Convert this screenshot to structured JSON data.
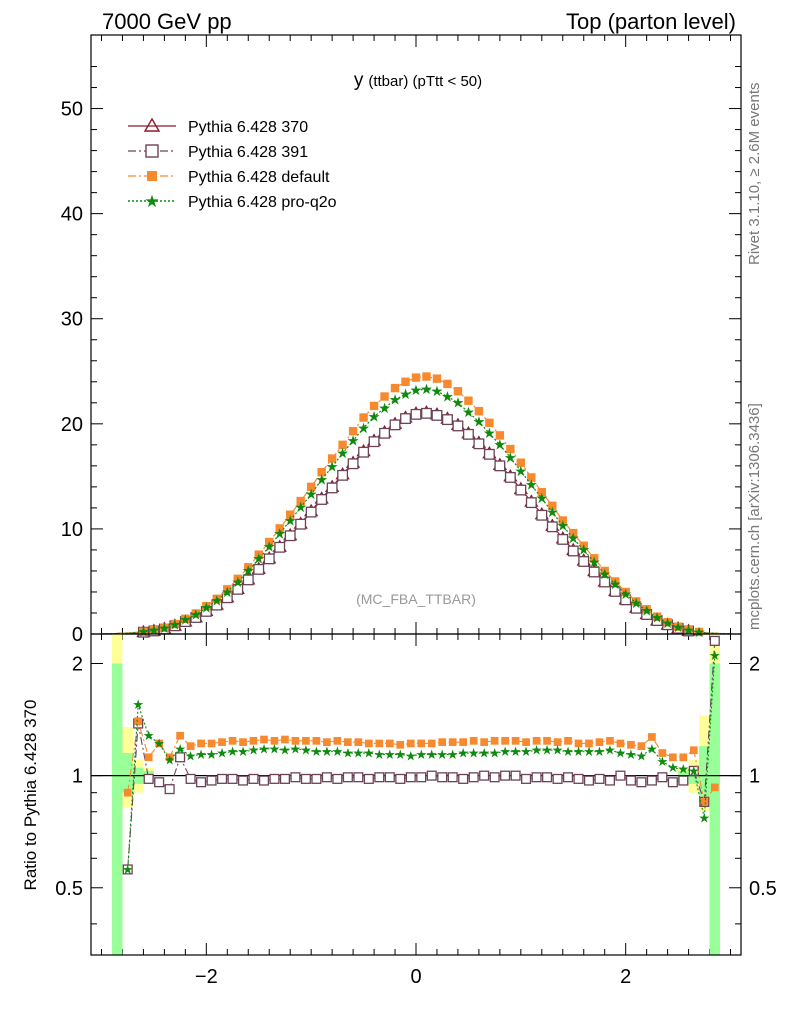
{
  "header": {
    "left": "7000 GeV pp",
    "right": "Top (parton level)"
  },
  "side_labels": {
    "rivet": "Rivet 3.1.10, ≥ 2.6M events",
    "mcplots": "mcplots.cern.ch [arXiv:1306.3436]"
  },
  "plot_title_main": "y",
  "plot_title_sub": "(ttbar)  (pTtt < 50)",
  "watermark": "(MC_FBA_TTBAR)",
  "ratio_ylabel": "Ratio to Pythia 6.428 370",
  "colors": {
    "p370": "#8b1a2b",
    "p391": "#6b4358",
    "default": "#f78a2e",
    "proq2o": "#0f8a0f",
    "band_yellow": "#ffff99",
    "band_green": "#99ff99"
  },
  "chart_data": [
    {
      "type": "line",
      "panel": "main",
      "xlim": [
        -3.1,
        3.1
      ],
      "ylim": [
        0,
        57
      ],
      "yticks": [
        "0",
        "10",
        "20",
        "30",
        "40",
        "50"
      ],
      "xticks": [
        "−2",
        "0",
        "2"
      ],
      "legend_position": "top-left",
      "series": [
        {
          "name": "Pythia 6.428 370",
          "key": "p370",
          "marker": "open-triangle",
          "style": "solid",
          "x": [
            -3.0,
            -2.9,
            -2.8,
            -2.7,
            -2.6,
            -2.5,
            -2.4,
            -2.3,
            -2.2,
            -2.1,
            -2.0,
            -1.9,
            -1.8,
            -1.7,
            -1.6,
            -1.5,
            -1.4,
            -1.3,
            -1.2,
            -1.1,
            -1.0,
            -0.9,
            -0.8,
            -0.7,
            -0.6,
            -0.5,
            -0.4,
            -0.3,
            -0.2,
            -0.1,
            0.0,
            0.1,
            0.2,
            0.3,
            0.4,
            0.5,
            0.6,
            0.7,
            0.8,
            0.9,
            1.0,
            1.1,
            1.2,
            1.3,
            1.4,
            1.5,
            1.6,
            1.7,
            1.8,
            1.9,
            2.0,
            2.1,
            2.2,
            2.3,
            2.4,
            2.5,
            2.6,
            2.7,
            2.8,
            2.9,
            3.0
          ],
          "y": [
            0.02,
            0.03,
            0.06,
            0.1,
            0.18,
            0.3,
            0.5,
            0.8,
            1.2,
            1.6,
            2.2,
            2.8,
            3.5,
            4.3,
            5.2,
            6.2,
            7.2,
            8.3,
            9.4,
            10.5,
            11.7,
            12.9,
            14.0,
            15.2,
            16.3,
            17.4,
            18.4,
            19.2,
            20.0,
            20.6,
            21.0,
            21.1,
            20.9,
            20.5,
            19.9,
            19.1,
            18.2,
            17.2,
            16.1,
            15.0,
            13.8,
            12.6,
            11.4,
            10.3,
            9.1,
            8.0,
            7.0,
            6.0,
            5.0,
            4.1,
            3.3,
            2.5,
            1.9,
            1.3,
            0.9,
            0.55,
            0.3,
            0.15,
            0.07,
            0.04,
            0.02
          ]
        },
        {
          "name": "Pythia 6.428 391",
          "key": "p391",
          "marker": "open-square",
          "style": "dashdot",
          "x": [
            -3.0,
            -2.9,
            -2.8,
            -2.7,
            -2.6,
            -2.5,
            -2.4,
            -2.3,
            -2.2,
            -2.1,
            -2.0,
            -1.9,
            -1.8,
            -1.7,
            -1.6,
            -1.5,
            -1.4,
            -1.3,
            -1.2,
            -1.1,
            -1.0,
            -0.9,
            -0.8,
            -0.7,
            -0.6,
            -0.5,
            -0.4,
            -0.3,
            -0.2,
            -0.1,
            0.0,
            0.1,
            0.2,
            0.3,
            0.4,
            0.5,
            0.6,
            0.7,
            0.8,
            0.9,
            1.0,
            1.1,
            1.2,
            1.3,
            1.4,
            1.5,
            1.6,
            1.7,
            1.8,
            1.9,
            2.0,
            2.1,
            2.2,
            2.3,
            2.4,
            2.5,
            2.6,
            2.7,
            2.8,
            2.9,
            3.0
          ],
          "y": [
            0.02,
            0.03,
            0.06,
            0.1,
            0.17,
            0.29,
            0.48,
            0.78,
            1.18,
            1.57,
            2.15,
            2.75,
            3.45,
            4.25,
            5.15,
            6.15,
            7.15,
            8.25,
            9.35,
            10.45,
            11.6,
            12.8,
            13.9,
            15.1,
            16.2,
            17.3,
            18.3,
            19.1,
            19.9,
            20.5,
            20.9,
            21.0,
            20.8,
            20.4,
            19.8,
            19.0,
            18.1,
            17.1,
            16.0,
            14.9,
            13.7,
            12.5,
            11.3,
            10.2,
            9.0,
            7.9,
            6.9,
            5.9,
            4.95,
            4.05,
            3.25,
            2.45,
            1.85,
            1.28,
            0.88,
            0.54,
            0.29,
            0.14,
            0.07,
            0.04,
            0.02
          ]
        },
        {
          "name": "Pythia 6.428 default",
          "key": "default",
          "marker": "filled-square",
          "style": "dashdot",
          "x": [
            -3.0,
            -2.9,
            -2.8,
            -2.7,
            -2.6,
            -2.5,
            -2.4,
            -2.3,
            -2.2,
            -2.1,
            -2.0,
            -1.9,
            -1.8,
            -1.7,
            -1.6,
            -1.5,
            -1.4,
            -1.3,
            -1.2,
            -1.1,
            -1.0,
            -0.9,
            -0.8,
            -0.7,
            -0.6,
            -0.5,
            -0.4,
            -0.3,
            -0.2,
            -0.1,
            0.0,
            0.1,
            0.2,
            0.3,
            0.4,
            0.5,
            0.6,
            0.7,
            0.8,
            0.9,
            1.0,
            1.1,
            1.2,
            1.3,
            1.4,
            1.5,
            1.6,
            1.7,
            1.8,
            1.9,
            2.0,
            2.1,
            2.2,
            2.3,
            2.4,
            2.5,
            2.6,
            2.7,
            2.8,
            2.9,
            3.0
          ],
          "y": [
            0.02,
            0.03,
            0.07,
            0.13,
            0.22,
            0.37,
            0.6,
            0.95,
            1.45,
            1.95,
            2.65,
            3.35,
            4.25,
            5.25,
            6.35,
            7.55,
            8.75,
            10.05,
            11.35,
            12.65,
            14.0,
            15.4,
            16.7,
            18.0,
            19.3,
            20.6,
            21.7,
            22.6,
            23.4,
            24.0,
            24.4,
            24.5,
            24.3,
            23.8,
            23.1,
            22.2,
            21.2,
            20.1,
            18.9,
            17.6,
            16.3,
            14.9,
            13.5,
            12.2,
            10.8,
            9.6,
            8.4,
            7.2,
            6.0,
            5.0,
            4.0,
            3.1,
            2.35,
            1.65,
            1.12,
            0.7,
            0.38,
            0.19,
            0.09,
            0.05,
            0.02
          ]
        },
        {
          "name": "Pythia 6.428 pro-q2o",
          "key": "proq2o",
          "marker": "open-star",
          "style": "dotted",
          "x": [
            -3.0,
            -2.9,
            -2.8,
            -2.7,
            -2.6,
            -2.5,
            -2.4,
            -2.3,
            -2.2,
            -2.1,
            -2.0,
            -1.9,
            -1.8,
            -1.7,
            -1.6,
            -1.5,
            -1.4,
            -1.3,
            -1.2,
            -1.1,
            -1.0,
            -0.9,
            -0.8,
            -0.7,
            -0.6,
            -0.5,
            -0.4,
            -0.3,
            -0.2,
            -0.1,
            0.0,
            0.1,
            0.2,
            0.3,
            0.4,
            0.5,
            0.6,
            0.7,
            0.8,
            0.9,
            1.0,
            1.1,
            1.2,
            1.3,
            1.4,
            1.5,
            1.6,
            1.7,
            1.8,
            1.9,
            2.0,
            2.1,
            2.2,
            2.3,
            2.4,
            2.5,
            2.6,
            2.7,
            2.8,
            2.9,
            3.0
          ],
          "y": [
            0.02,
            0.03,
            0.06,
            0.12,
            0.21,
            0.35,
            0.57,
            0.9,
            1.37,
            1.84,
            2.5,
            3.18,
            4.0,
            4.95,
            6.0,
            7.15,
            8.3,
            9.55,
            10.8,
            12.05,
            13.3,
            14.7,
            15.9,
            17.2,
            18.4,
            19.6,
            20.7,
            21.5,
            22.3,
            22.8,
            23.2,
            23.3,
            23.1,
            22.6,
            22.0,
            21.1,
            20.2,
            19.1,
            18.0,
            16.8,
            15.5,
            14.2,
            12.9,
            11.6,
            10.3,
            9.1,
            8.0,
            6.85,
            5.7,
            4.75,
            3.8,
            2.95,
            2.2,
            1.55,
            1.05,
            0.65,
            0.35,
            0.17,
            0.08,
            0.04,
            0.02
          ]
        }
      ]
    },
    {
      "type": "line",
      "panel": "ratio",
      "ylabel": "Ratio to Pythia 6.428 370",
      "xlim": [
        -3.1,
        3.1
      ],
      "ylim": [
        0.33,
        2.4
      ],
      "yscale": "log",
      "yticks": [
        "0.5",
        "1",
        "2"
      ],
      "xticks": [
        "−2",
        "0",
        "2"
      ],
      "reference_line": 1,
      "bands": [
        {
          "color": "band_yellow",
          "x": [
            -2.85,
            -2.75,
            -2.65,
            -2.55,
            2.55,
            2.65,
            2.75,
            2.85
          ],
          "lo": [
            0.35,
            0.82,
            0.9,
            0.95,
            0.95,
            0.9,
            0.8,
            0.33
          ],
          "hi": [
            2.5,
            1.35,
            1.1,
            1.05,
            1.05,
            1.1,
            1.45,
            2.5
          ]
        },
        {
          "color": "band_green",
          "x": [
            -2.85,
            -2.75,
            -2.65,
            -2.55,
            2.55,
            2.65,
            2.75,
            2.85
          ],
          "lo": [
            0.33,
            0.9,
            0.95,
            0.97,
            0.97,
            0.95,
            0.85,
            0.33
          ],
          "hi": [
            2.0,
            1.15,
            1.05,
            1.03,
            1.03,
            1.05,
            1.2,
            2.0
          ]
        }
      ],
      "series": [
        {
          "name": "Pythia 6.428 391",
          "key": "p391",
          "x": [
            -2.75,
            -2.65,
            -2.55,
            -2.45,
            -2.35,
            -2.25,
            -2.15,
            -2.05,
            -1.95,
            -1.85,
            -1.75,
            -1.65,
            -1.55,
            -1.45,
            -1.35,
            -1.25,
            -1.15,
            -1.05,
            -0.95,
            -0.85,
            -0.75,
            -0.65,
            -0.55,
            -0.45,
            -0.35,
            -0.25,
            -0.15,
            -0.05,
            0.05,
            0.15,
            0.25,
            0.35,
            0.45,
            0.55,
            0.65,
            0.75,
            0.85,
            0.95,
            1.05,
            1.15,
            1.25,
            1.35,
            1.45,
            1.55,
            1.65,
            1.75,
            1.85,
            1.95,
            2.05,
            2.15,
            2.25,
            2.35,
            2.45,
            2.55,
            2.65,
            2.75,
            2.85
          ],
          "y": [
            0.56,
            1.38,
            0.98,
            0.96,
            0.92,
            1.12,
            0.98,
            0.96,
            0.97,
            0.98,
            0.98,
            0.97,
            0.98,
            0.97,
            0.98,
            0.98,
            0.99,
            0.98,
            0.98,
            0.99,
            0.98,
            0.99,
            0.99,
            0.98,
            0.99,
            0.99,
            0.98,
            0.99,
            0.99,
            1.0,
            0.99,
            0.99,
            0.98,
            0.99,
            1.0,
            0.99,
            1.0,
            1.0,
            0.98,
            0.99,
            0.99,
            0.98,
            0.99,
            0.98,
            0.97,
            0.98,
            0.97,
            1.0,
            0.97,
            0.96,
            0.97,
            0.99,
            0.96,
            0.97,
            1.03,
            0.85,
            2.3
          ]
        },
        {
          "name": "Pythia 6.428 default",
          "key": "default",
          "x": [
            -2.75,
            -2.65,
            -2.55,
            -2.45,
            -2.35,
            -2.25,
            -2.15,
            -2.05,
            -1.95,
            -1.85,
            -1.75,
            -1.65,
            -1.55,
            -1.45,
            -1.35,
            -1.25,
            -1.15,
            -1.05,
            -0.95,
            -0.85,
            -0.75,
            -0.65,
            -0.55,
            -0.45,
            -0.35,
            -0.25,
            -0.15,
            -0.05,
            0.05,
            0.15,
            0.25,
            0.35,
            0.45,
            0.55,
            0.65,
            0.75,
            0.85,
            0.95,
            1.05,
            1.15,
            1.25,
            1.35,
            1.45,
            1.55,
            1.65,
            1.75,
            1.85,
            1.95,
            2.05,
            2.15,
            2.25,
            2.35,
            2.45,
            2.55,
            2.65,
            2.75,
            2.85
          ],
          "y": [
            0.9,
            1.4,
            1.12,
            1.22,
            1.12,
            1.28,
            1.2,
            1.22,
            1.22,
            1.23,
            1.24,
            1.23,
            1.24,
            1.25,
            1.24,
            1.25,
            1.24,
            1.24,
            1.24,
            1.23,
            1.24,
            1.23,
            1.23,
            1.22,
            1.22,
            1.22,
            1.21,
            1.22,
            1.22,
            1.22,
            1.23,
            1.23,
            1.23,
            1.24,
            1.23,
            1.24,
            1.24,
            1.24,
            1.23,
            1.24,
            1.24,
            1.23,
            1.24,
            1.22,
            1.22,
            1.23,
            1.24,
            1.22,
            1.21,
            1.2,
            1.27,
            1.15,
            1.12,
            1.12,
            1.17,
            0.85,
            0.93
          ]
        },
        {
          "name": "Pythia 6.428 pro-q2o",
          "key": "proq2o",
          "x": [
            -2.75,
            -2.65,
            -2.55,
            -2.45,
            -2.35,
            -2.25,
            -2.15,
            -2.05,
            -1.95,
            -1.85,
            -1.75,
            -1.65,
            -1.55,
            -1.45,
            -1.35,
            -1.25,
            -1.15,
            -1.05,
            -0.95,
            -0.85,
            -0.75,
            -0.65,
            -0.55,
            -0.45,
            -0.35,
            -0.25,
            -0.15,
            -0.05,
            0.05,
            0.15,
            0.25,
            0.35,
            0.45,
            0.55,
            0.65,
            0.75,
            0.85,
            0.95,
            1.05,
            1.15,
            1.25,
            1.35,
            1.45,
            1.55,
            1.65,
            1.75,
            1.85,
            1.95,
            2.05,
            2.15,
            2.25,
            2.35,
            2.45,
            2.55,
            2.65,
            2.75,
            2.85
          ],
          "y": [
            0.56,
            1.55,
            1.28,
            1.22,
            1.1,
            1.18,
            1.13,
            1.14,
            1.14,
            1.15,
            1.16,
            1.16,
            1.17,
            1.18,
            1.18,
            1.17,
            1.18,
            1.17,
            1.16,
            1.16,
            1.16,
            1.15,
            1.15,
            1.15,
            1.14,
            1.14,
            1.14,
            1.13,
            1.14,
            1.14,
            1.14,
            1.14,
            1.15,
            1.15,
            1.15,
            1.15,
            1.16,
            1.16,
            1.16,
            1.17,
            1.17,
            1.17,
            1.16,
            1.16,
            1.16,
            1.16,
            1.17,
            1.15,
            1.14,
            1.13,
            1.18,
            1.09,
            1.05,
            1.04,
            1.03,
            0.77,
            2.1
          ]
        }
      ]
    }
  ]
}
